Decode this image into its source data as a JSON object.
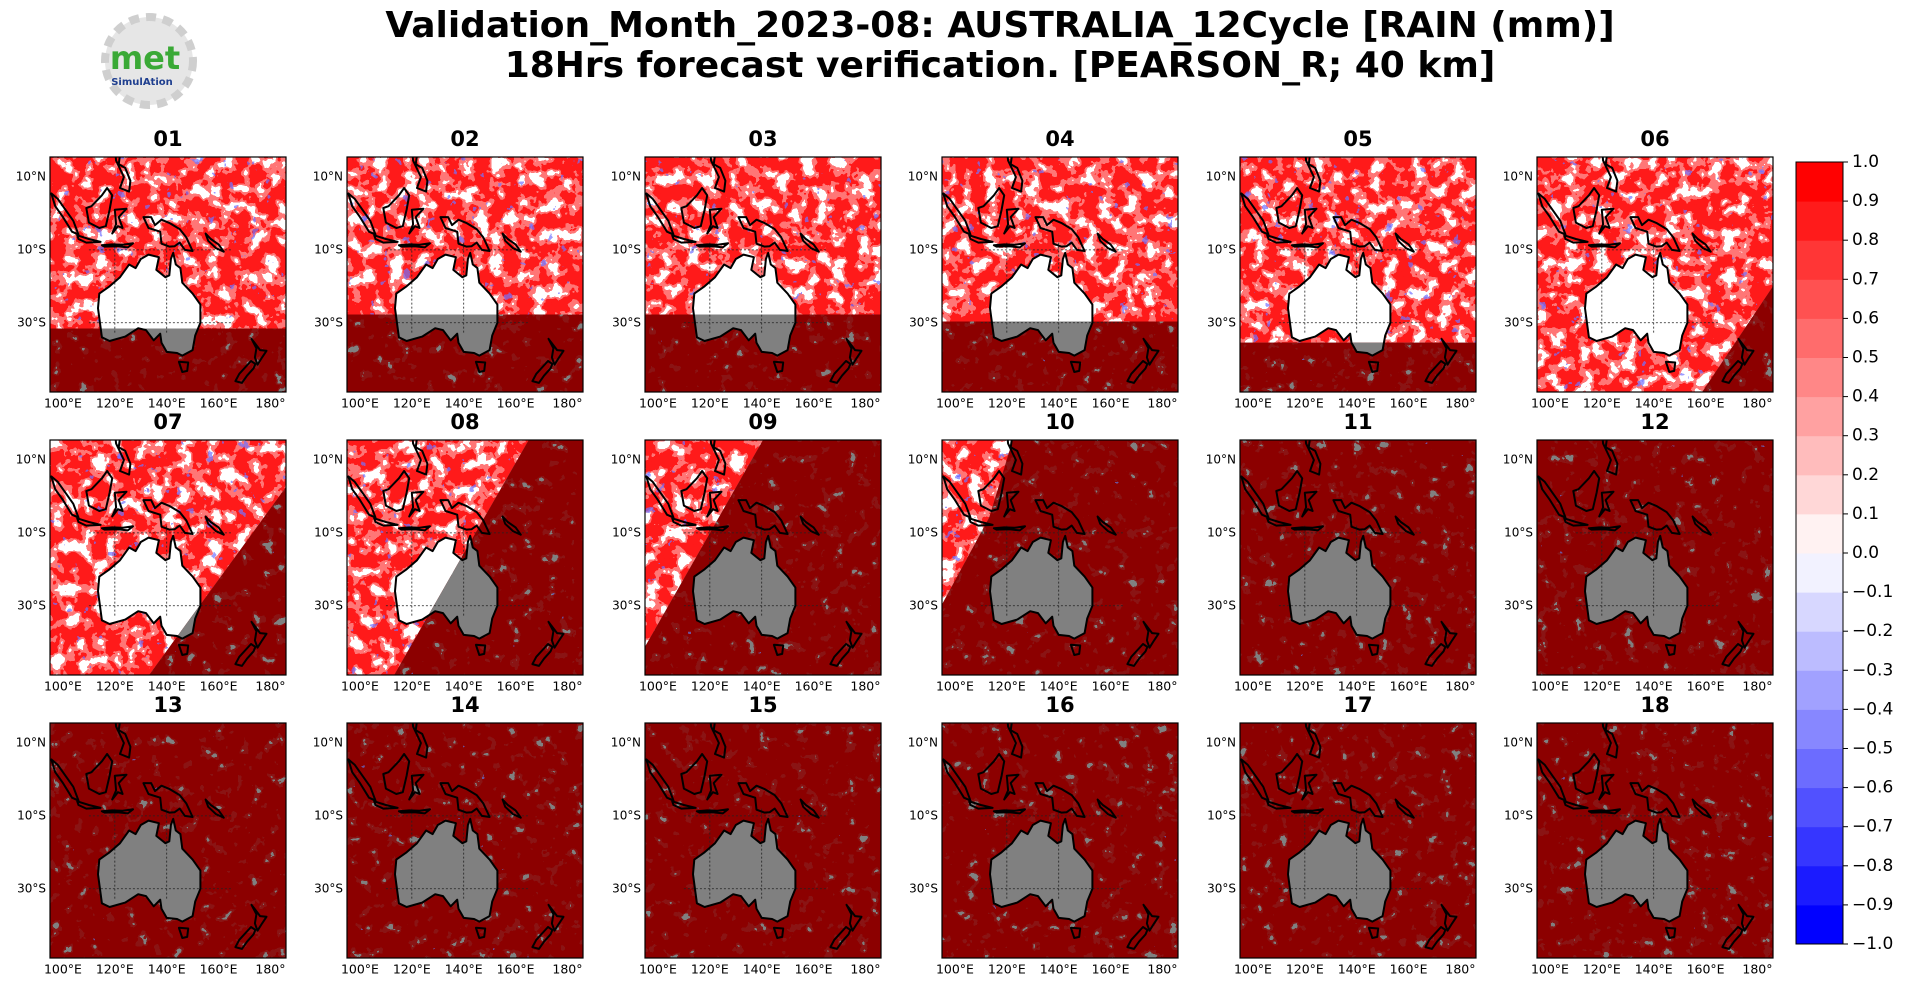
{
  "chart_data": {
    "type": "map",
    "title": [
      "Validation_Month_2023-08: AUSTRALIA_12Cycle [RAIN (mm)]",
      "18Hrs forecast verification.  [PEARSON_R; 40 km]"
    ],
    "logo": {
      "text": "met",
      "subtext": "SimulAtion"
    },
    "panels": [
      "01",
      "02",
      "03",
      "04",
      "05",
      "06",
      "07",
      "08",
      "09",
      "10",
      "11",
      "12",
      "13",
      "14",
      "15",
      "16",
      "17",
      "18"
    ],
    "lonlim": [
      95,
      186
    ],
    "latlim": [
      -49,
      15.5
    ],
    "lonticks": [
      {
        "value": 100,
        "label": "100°E"
      },
      {
        "value": 120,
        "label": "120°E"
      },
      {
        "value": 140,
        "label": "140°E"
      },
      {
        "value": 160,
        "label": "160°E"
      },
      {
        "value": 180,
        "label": "180°"
      }
    ],
    "latticks": [
      {
        "value": 10,
        "label": "10°N"
      },
      {
        "value": -10,
        "label": "10°S"
      },
      {
        "value": -30,
        "label": "30°S"
      }
    ],
    "colorbar": {
      "clim": [
        -1,
        1
      ],
      "colormap": [
        "#0000ff",
        "#ffffff",
        "#ff0000"
      ],
      "ticks": [
        {
          "value": -1,
          "label": "−1.0"
        },
        {
          "value": -0.9,
          "label": "−0.9"
        },
        {
          "value": -0.8,
          "label": "−0.8"
        },
        {
          "value": -0.7,
          "label": "−0.7"
        },
        {
          "value": -0.6,
          "label": "−0.6"
        },
        {
          "value": -0.5,
          "label": "−0.5"
        },
        {
          "value": -0.4,
          "label": "−0.4"
        },
        {
          "value": -0.3,
          "label": "−0.3"
        },
        {
          "value": -0.2,
          "label": "−0.2"
        },
        {
          "value": -0.1,
          "label": "−0.1"
        },
        {
          "value": 0,
          "label": "0.0"
        },
        0.1,
        0.2,
        0.3,
        0.4,
        0.5,
        0.6,
        0.7,
        0.8,
        0.9,
        {
          "value": 1,
          "label": "1.0"
        }
      ]
    }
  }
}
